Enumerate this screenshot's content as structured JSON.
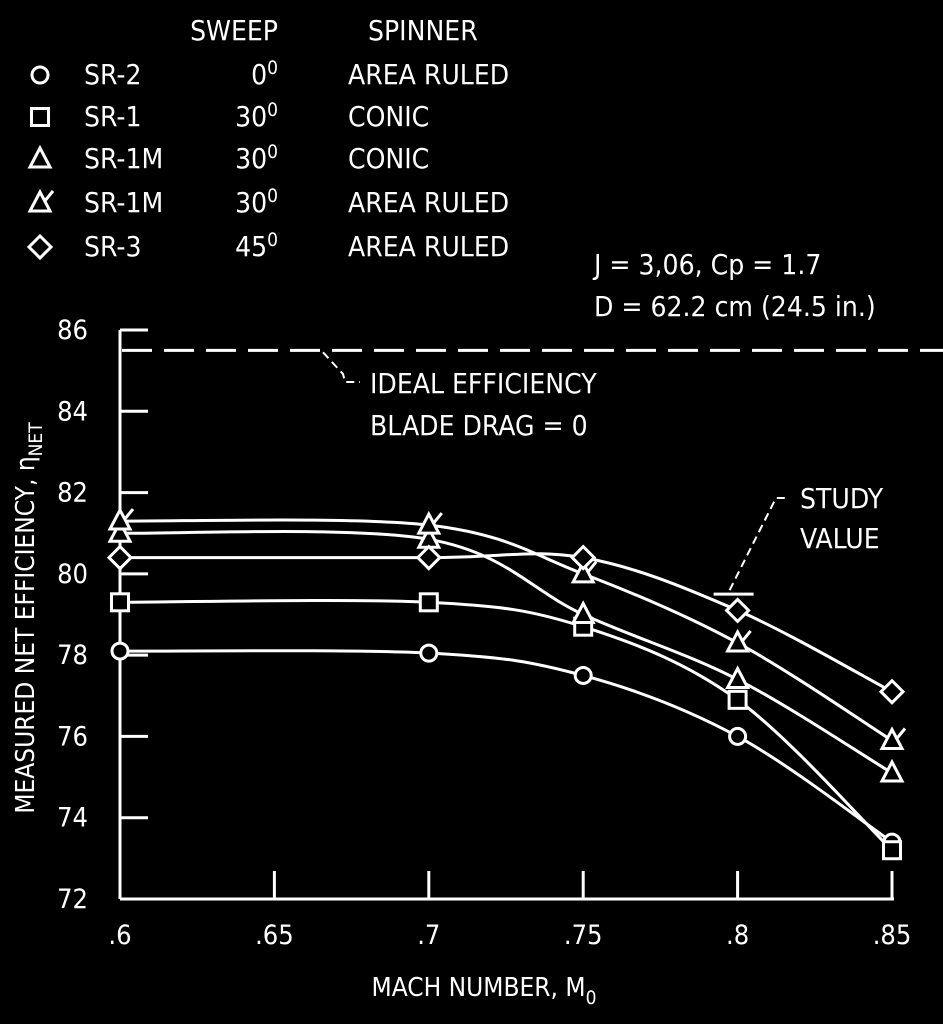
{
  "chart_data": {
    "type": "line",
    "xlabel": "MACH NUMBER, M",
    "xlabel_sub": "0",
    "ylabel": "MEASURED NET EFFICIENCY, η",
    "ylabel_sub": "NET",
    "xlim": [
      0.6,
      0.85
    ],
    "ylim": [
      72,
      86
    ],
    "x_ticks": [
      0.6,
      0.65,
      0.7,
      0.75,
      0.8,
      0.85
    ],
    "x_tick_labels": [
      ".6",
      ".65",
      ".7",
      ".75",
      ".8",
      ".85"
    ],
    "y_ticks": [
      72,
      74,
      76,
      78,
      80,
      82,
      84,
      86
    ],
    "y_tick_labels": [
      "72",
      "74",
      "76",
      "78",
      "80",
      "82",
      "84",
      "86"
    ],
    "legend_headers": {
      "sweep": "SWEEP",
      "spinner": "SPINNER"
    },
    "series": [
      {
        "name": "SR-2",
        "sweep_deg": "0",
        "spinner": "AREA RULED",
        "marker": "circle",
        "x": [
          0.6,
          0.7,
          0.75,
          0.8,
          0.85
        ],
        "y": [
          78.1,
          78.05,
          77.5,
          76.0,
          73.4
        ]
      },
      {
        "name": "SR-1",
        "sweep_deg": "30",
        "spinner": "CONIC",
        "marker": "square",
        "x": [
          0.6,
          0.7,
          0.75,
          0.8,
          0.85
        ],
        "y": [
          79.3,
          79.3,
          78.7,
          76.9,
          73.2
        ]
      },
      {
        "name": "SR-1M",
        "sweep_deg": "30",
        "spinner": "CONIC",
        "marker": "triangle",
        "x": [
          0.6,
          0.7,
          0.75,
          0.8,
          0.85
        ],
        "y": [
          81.0,
          80.85,
          79.0,
          77.4,
          75.1
        ]
      },
      {
        "name": "SR-1M",
        "sweep_deg": "30",
        "spinner": "AREA RULED",
        "marker": "flagged-triangle",
        "x": [
          0.6,
          0.7,
          0.75,
          0.8,
          0.85
        ],
        "y": [
          81.3,
          81.2,
          80.0,
          78.3,
          75.9
        ]
      },
      {
        "name": "SR-3",
        "sweep_deg": "45",
        "spinner": "AREA RULED",
        "marker": "diamond",
        "x": [
          0.6,
          0.7,
          0.75,
          0.8,
          0.85
        ],
        "y": [
          80.4,
          80.4,
          80.4,
          79.1,
          77.1
        ]
      }
    ],
    "reference_lines": [
      {
        "label_lines": [
          "IDEAL EFFICIENCY",
          "BLADE DRAG = 0"
        ],
        "y": 85.5,
        "style": "dashed"
      }
    ],
    "markers": [
      {
        "label_lines": [
          "STUDY",
          "VALUE"
        ],
        "x": 0.8,
        "y": 79.5
      }
    ],
    "conditions": [
      "J = 3,06,  Cp = 1.7",
      "D = 62.2 cm (24.5 in.)"
    ]
  }
}
